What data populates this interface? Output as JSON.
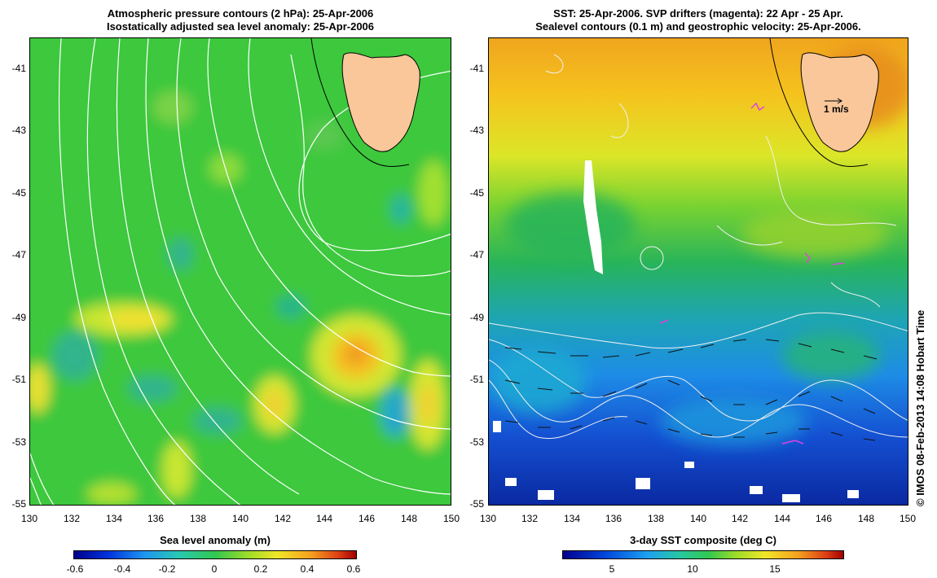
{
  "left_panel": {
    "title_line1": "Atmospheric pressure contours (2 hPa): 25-Apr-2006",
    "title_line2": "Isostatically adjusted sea level anomaly: 25-Apr-2006",
    "yticks": [
      "-41",
      "-43",
      "-45",
      "-47",
      "-49",
      "-51",
      "-53",
      "-55"
    ],
    "xticks": [
      "130",
      "132",
      "134",
      "136",
      "138",
      "140",
      "142",
      "144",
      "146",
      "148",
      "150"
    ],
    "colorbar_label": "Sea level anomaly (m)",
    "colorbar_ticks": [
      "-0.6",
      "-0.4",
      "-0.2",
      "0",
      "0.2",
      "0.4",
      "0.6"
    ]
  },
  "right_panel": {
    "title_line1": "SST: 25-Apr-2006. SVP drifters (magenta): 22 Apr - 25 Apr.",
    "title_line2": "Sealevel contours (0.1 m) and geostrophic velocity: 25-Apr-2006.",
    "yticks": [
      "-41",
      "-43",
      "-45",
      "-47",
      "-49",
      "-51",
      "-53",
      "-55"
    ],
    "xticks": [
      "130",
      "132",
      "134",
      "136",
      "138",
      "140",
      "142",
      "144",
      "146",
      "148",
      "150"
    ],
    "scale_label": "1 m/s",
    "colorbar_label": "3-day SST composite (deg C)",
    "colorbar_ticks": [
      "5",
      "10",
      "15"
    ]
  },
  "credit": "© IMOS 08-Feb-2013 14:08 Hobart Time",
  "colors": {
    "land": "#f9c79a",
    "sla_background": "#3cc83c",
    "contour": "#ffffff",
    "drifter": "#e040e0"
  }
}
